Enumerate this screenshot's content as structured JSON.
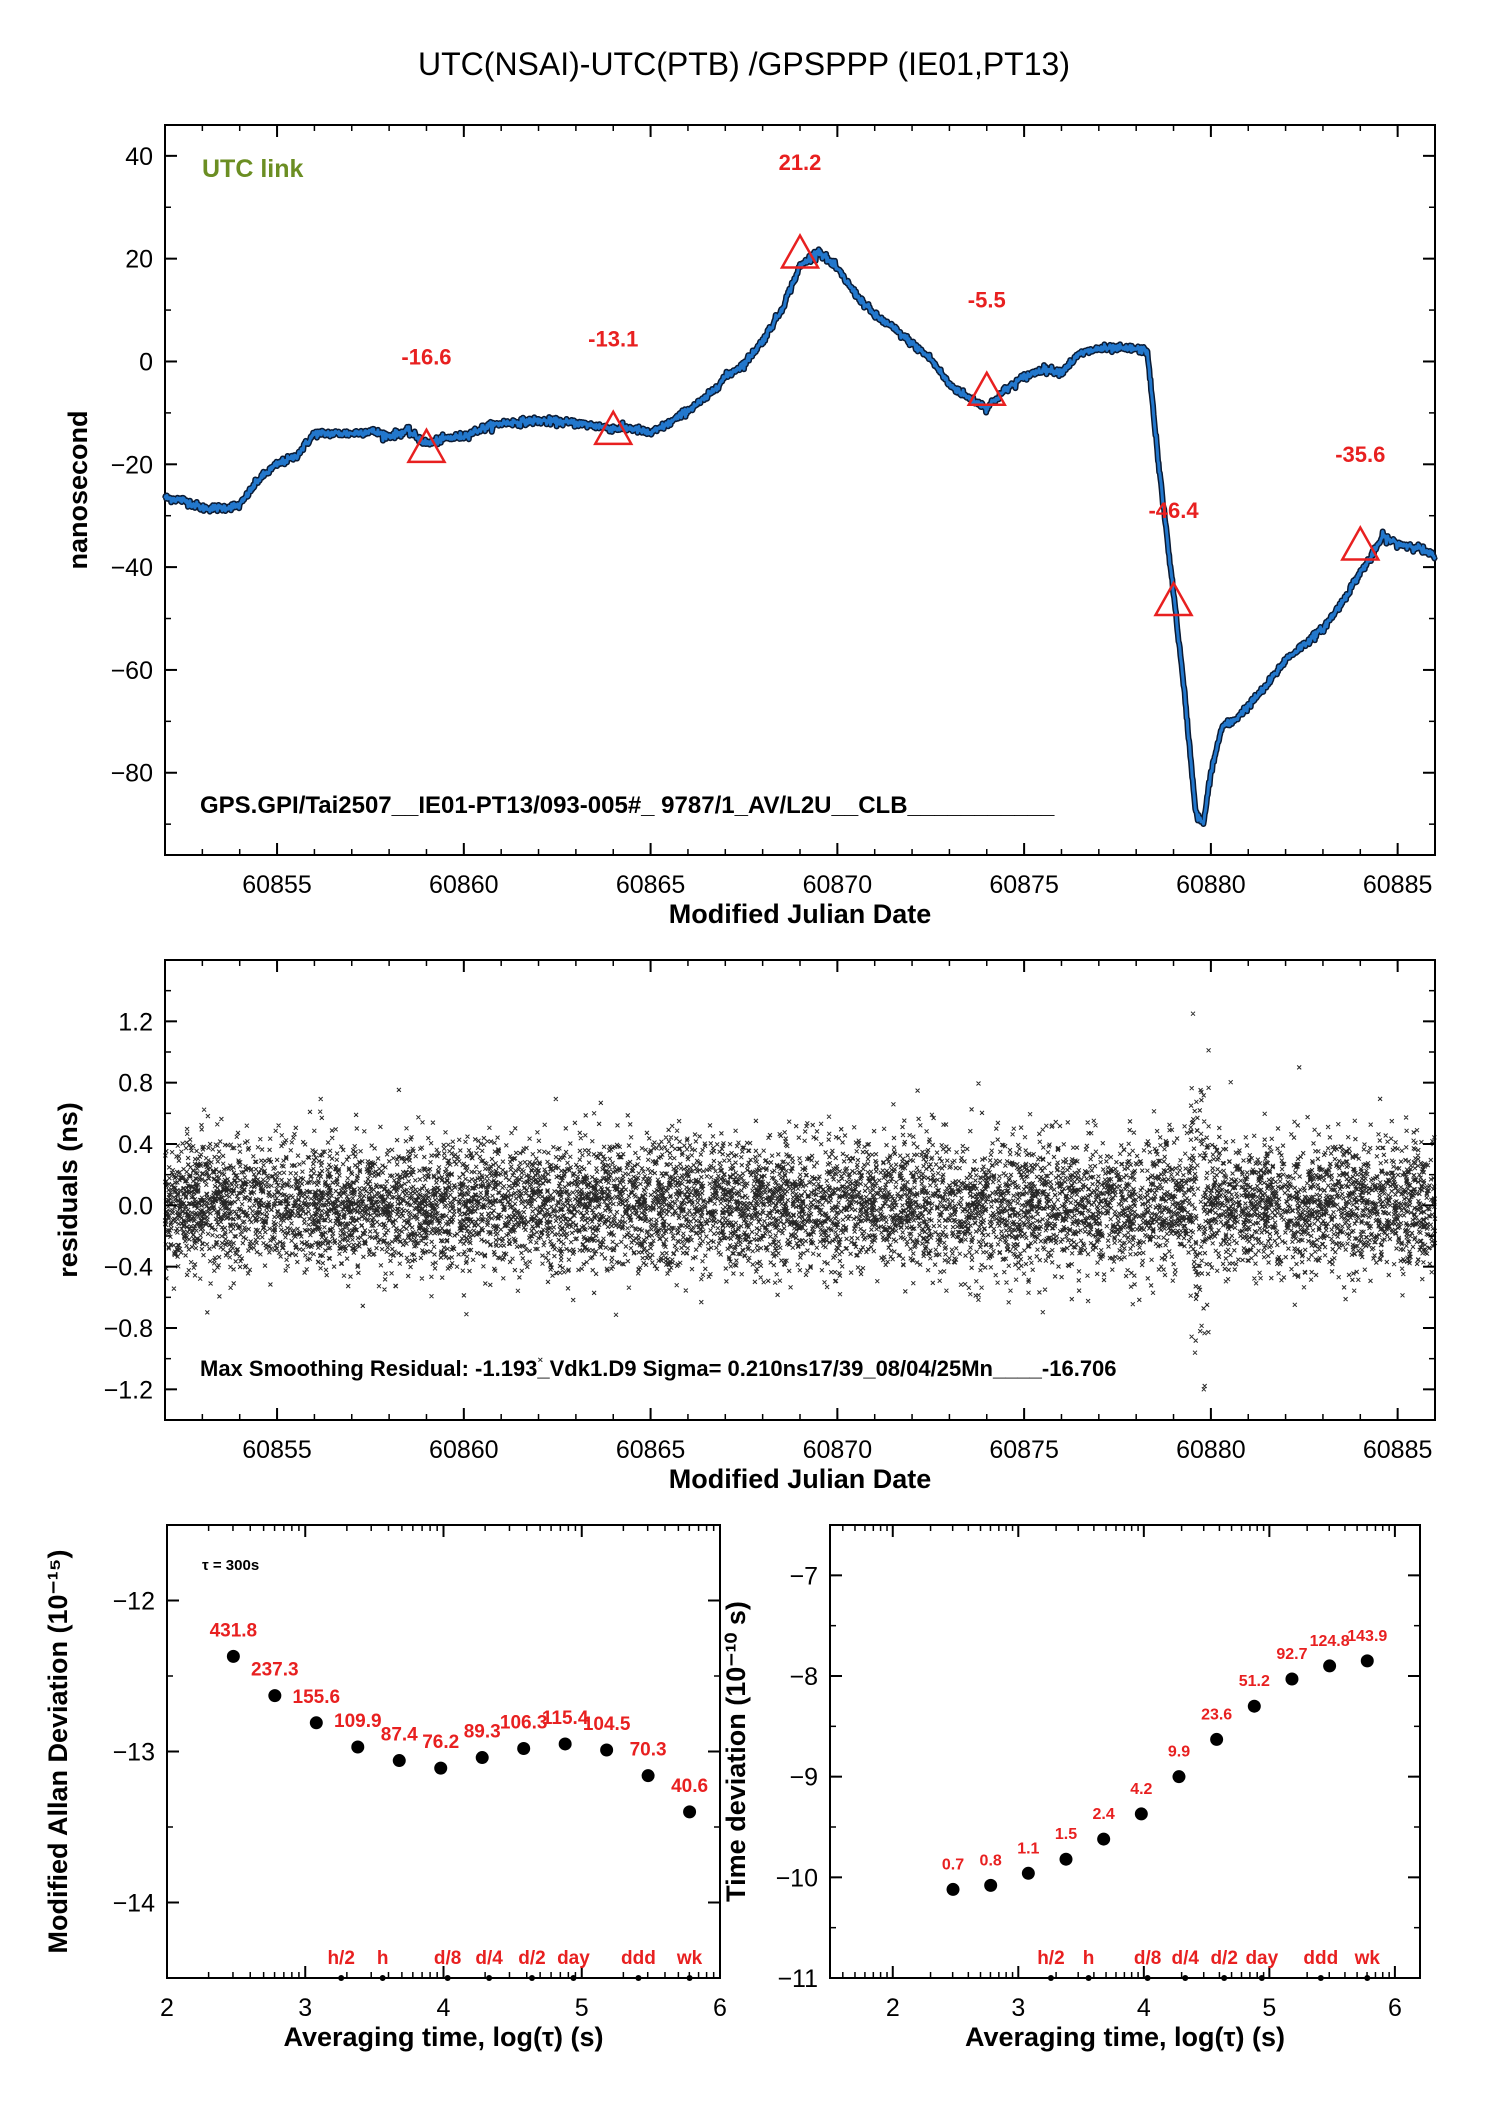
{
  "title": "UTC(NSAI)-UTC(PTB)  /GPSPPP  (IE01,PT13)",
  "colors": {
    "link": "#2277cc",
    "annotation": "#e82020",
    "utc_link": "#6b8e23",
    "points": "#000000"
  },
  "chart_data": [
    {
      "type": "line",
      "xlabel": "Modified Julian Date",
      "ylabel": "nanosecond",
      "xlim": [
        60852,
        60886
      ],
      "ylim": [
        -96,
        46
      ],
      "xticks": [
        60855,
        60860,
        60865,
        60870,
        60875,
        60880,
        60885
      ],
      "yticks": [
        40,
        20,
        0,
        -20,
        -40,
        -60,
        -80
      ],
      "ytick_labels": [
        "40",
        "20",
        "0",
        "−20",
        "−40",
        "−60",
        "−80"
      ],
      "legend_label": "UTC link",
      "footer_text": "GPS.GPI/Tai2507__IE01-PT13/093-005#_  9787/1_AV/L2U__CLB___________",
      "series": [
        {
          "x": [
            60852,
            60852.5,
            60853,
            60853.5,
            60854,
            60854.5,
            60855,
            60855.5,
            60856,
            60857,
            60857.5,
            60858,
            60858.5,
            60859,
            60859.5,
            60860,
            60860.5,
            60861,
            60862,
            60863,
            60864,
            60864.5,
            60865,
            60865.5,
            60866,
            60866.5,
            60867,
            60867.5,
            60868,
            60868.5,
            60869,
            60869.5,
            60870,
            60870.5,
            60871,
            60871.5,
            60872,
            60872.5,
            60873,
            60873.5,
            60874,
            60874.5,
            60875,
            60875.5,
            60876,
            60876.5,
            60877,
            60877.5,
            60878,
            60878.3,
            60878.6,
            60879,
            60879.3,
            60879.6,
            60879.8,
            60880,
            60880.3,
            60880.6,
            60881,
            60881.5,
            60882,
            60882.5,
            60883,
            60883.5,
            60884,
            60884.3,
            60884.6,
            60885,
            60885.5,
            60886
          ],
          "values": [
            -26.5,
            -27,
            -28.5,
            -28.5,
            -28,
            -23,
            -20,
            -18.5,
            -14,
            -14,
            -13.5,
            -14.5,
            -13.5,
            -16,
            -15,
            -14.5,
            -13,
            -12,
            -11.5,
            -12,
            -13,
            -13,
            -14,
            -12,
            -9.5,
            -7,
            -3,
            -0.5,
            4,
            10,
            18.5,
            21.5,
            18,
            13,
            9,
            6.5,
            3.5,
            0.5,
            -4.5,
            -7,
            -9,
            -5.5,
            -3,
            -1.5,
            -2,
            1.5,
            2.5,
            2.5,
            2.5,
            2,
            -20,
            -45,
            -65,
            -88,
            -90,
            -80,
            -71,
            -70,
            -67,
            -63,
            -58,
            -55,
            -52,
            -47,
            -41,
            -38,
            -34,
            -35.5,
            -36,
            -38
          ]
        }
      ],
      "annotations": [
        {
          "label": "-16.6",
          "x": 60859,
          "y": -16.6,
          "label_y": -0.6
        },
        {
          "label": "-13.1",
          "x": 60864,
          "y": -13.1,
          "label_y": 2.9
        },
        {
          "label": "21.2",
          "x": 60869,
          "y": 21.2,
          "label_y": 37.2
        },
        {
          "label": "-5.5",
          "x": 60874,
          "y": -5.5,
          "label_y": 10.5
        },
        {
          "label": "-46.4",
          "x": 60879,
          "y": -46.4,
          "label_y": -30.4
        },
        {
          "label": "-35.6",
          "x": 60884,
          "y": -35.6,
          "label_y": -19.6
        }
      ]
    },
    {
      "type": "scatter",
      "xlabel": "Modified Julian Date",
      "ylabel": "residuals (ns)",
      "xlim": [
        60852,
        60886
      ],
      "ylim": [
        -1.4,
        1.6
      ],
      "xticks": [
        60855,
        60860,
        60865,
        60870,
        60875,
        60880,
        60885
      ],
      "yticks": [
        1.2,
        0.8,
        0.4,
        0.0,
        -0.4,
        -0.8,
        -1.2
      ],
      "ytick_labels": [
        "1.2",
        "0.8",
        "0.4",
        "0.0",
        "−0.4",
        "−0.8",
        "−1.2"
      ],
      "spread_sigma_ns": 0.21,
      "footer_text": "Max Smoothing Residual: -1.193_Vdk1.D9  Sigma= 0.210ns17/39_08/04/25Mn____-16.706"
    },
    {
      "type": "scatter",
      "xlabel": "Averaging time, log(τ) (s)",
      "ylabel": "Modified Allan Deviation (10⁻¹⁵)",
      "xlim": [
        2,
        6
      ],
      "ylim": [
        -14.5,
        -11.5
      ],
      "xticks": [
        2,
        3,
        4,
        5,
        6
      ],
      "yticks": [
        -12,
        -13,
        -14
      ],
      "ytick_labels": [
        "−12",
        "−13",
        "−14"
      ],
      "tau_label": "τ = 300s",
      "x": [
        2.48,
        2.78,
        3.08,
        3.38,
        3.68,
        3.98,
        4.28,
        4.58,
        4.88,
        5.18,
        5.48,
        5.78
      ],
      "values": [
        -12.37,
        -12.63,
        -12.81,
        -12.97,
        -13.06,
        -13.11,
        -13.04,
        -12.98,
        -12.95,
        -12.99,
        -13.16,
        -13.4
      ],
      "point_labels": [
        "431.8",
        "237.3",
        "155.6",
        "109.9",
        "87.4",
        "76.2",
        "89.3",
        "106.3",
        "115.4",
        "104.5",
        "70.3",
        "40.6"
      ],
      "markers": [
        {
          "label": "h/2",
          "x": 3.26
        },
        {
          "label": "h",
          "x": 3.56
        },
        {
          "label": "d/8",
          "x": 4.03
        },
        {
          "label": "d/4",
          "x": 4.33
        },
        {
          "label": "d/2",
          "x": 4.64
        },
        {
          "label": "day",
          "x": 4.94
        },
        {
          "label": "ddd",
          "x": 5.41
        },
        {
          "label": "wk",
          "x": 5.78
        }
      ]
    },
    {
      "type": "scatter",
      "xlabel": "Averaging time, log(τ) (s)",
      "ylabel": "Time deviation (10⁻¹⁰ s)",
      "xlim": [
        1.5,
        6.2
      ],
      "ylim": [
        -11,
        -6.5
      ],
      "xticks": [
        2,
        3,
        4,
        5,
        6
      ],
      "yticks": [
        -7,
        -8,
        -9,
        -10,
        -11
      ],
      "ytick_labels": [
        "−7",
        "−8",
        "−9",
        "−10",
        "−11"
      ],
      "x": [
        2.48,
        2.78,
        3.08,
        3.38,
        3.68,
        3.98,
        4.28,
        4.58,
        4.88,
        5.18,
        5.48,
        5.78
      ],
      "values": [
        -10.12,
        -10.08,
        -9.96,
        -9.82,
        -9.62,
        -9.37,
        -9.0,
        -8.63,
        -8.3,
        -8.03,
        -7.9,
        -7.85
      ],
      "point_labels": [
        "0.7",
        "0.8",
        "1.1",
        "1.5",
        "2.4",
        "4.2",
        "9.9",
        "23.6",
        "51.2",
        "92.7",
        "124.8",
        "143.9"
      ],
      "markers": [
        {
          "label": "h/2",
          "x": 3.26
        },
        {
          "label": "h",
          "x": 3.56
        },
        {
          "label": "d/8",
          "x": 4.03
        },
        {
          "label": "d/4",
          "x": 4.33
        },
        {
          "label": "d/2",
          "x": 4.64
        },
        {
          "label": "day",
          "x": 4.94
        },
        {
          "label": "ddd",
          "x": 5.41
        },
        {
          "label": "wk",
          "x": 5.78
        }
      ]
    }
  ]
}
